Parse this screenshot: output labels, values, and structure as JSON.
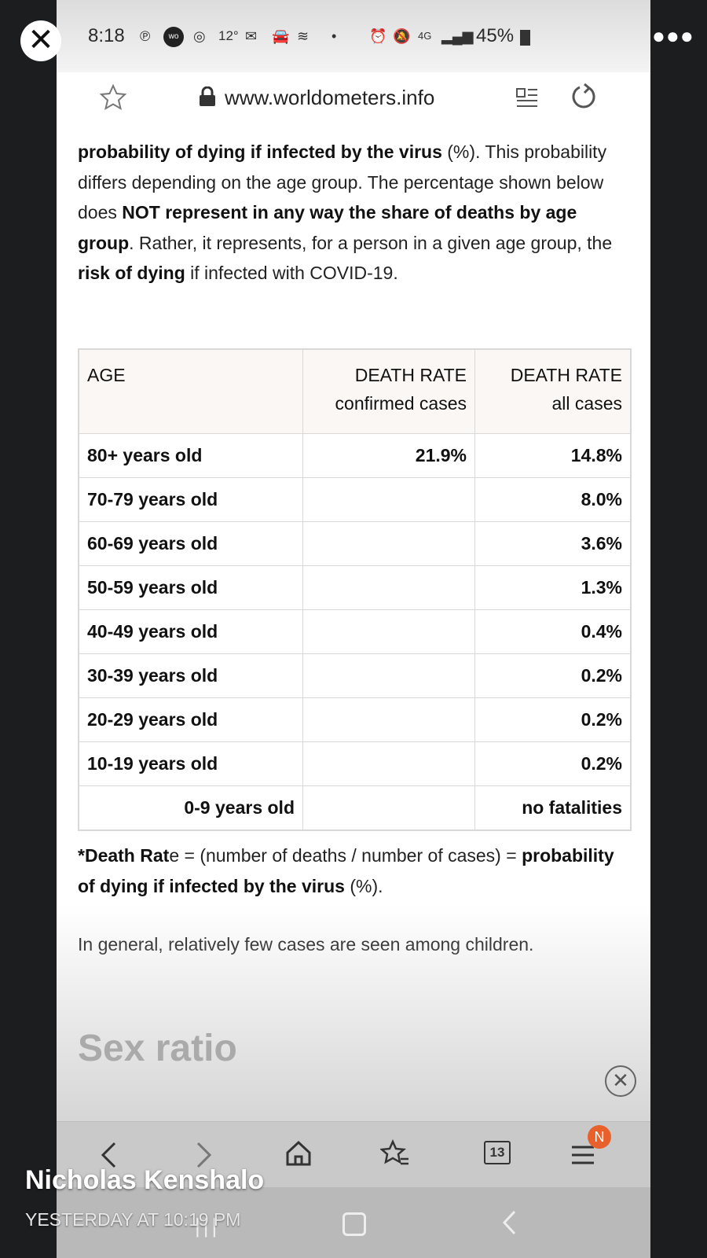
{
  "status": {
    "time": "8:18",
    "temperature": "12°",
    "battery": "45%",
    "network": "4G"
  },
  "browser": {
    "url": "www.worldometers.info",
    "tab_count": "13",
    "notification_badge": "N"
  },
  "article": {
    "intro": {
      "b1": "probability of dying if infected by the virus",
      "t1": " (%). This probability differs depending on the age group. The percentage shown below does ",
      "b2": "NOT represent in any way the share of deaths by age group",
      "t2": ". Rather, it represents, for a person in a given age group, the ",
      "b3": "risk of dying",
      "t3": " if infected with COVID-19."
    },
    "table": {
      "headers": {
        "age": "AGE",
        "col2_line1": "DEATH RATE",
        "col2_line2": "confirmed cases",
        "col3_line1": "DEATH RATE",
        "col3_line2": "all cases"
      },
      "rows": [
        {
          "age": "80+ years old",
          "confirmed": "21.9%",
          "all": "14.8%"
        },
        {
          "age": "70-79 years old",
          "confirmed": "",
          "all": "8.0%"
        },
        {
          "age": "60-69 years old",
          "confirmed": "",
          "all": "3.6%"
        },
        {
          "age": "50-59 years old",
          "confirmed": "",
          "all": "1.3%"
        },
        {
          "age": "40-49 years old",
          "confirmed": "",
          "all": "0.4%"
        },
        {
          "age": "30-39 years old",
          "confirmed": "",
          "all": "0.2%"
        },
        {
          "age": "20-29 years old",
          "confirmed": "",
          "all": "0.2%"
        },
        {
          "age": "10-19 years old",
          "confirmed": "",
          "all": "0.2%"
        },
        {
          "age": "0-9 years old",
          "confirmed": "",
          "all": "no fatalities"
        }
      ]
    },
    "footnote": {
      "star": "*",
      "b1": "Death Rat",
      "t1": "e = (number of deaths / number of cases) = ",
      "b2": "probability of dying if infected by the virus",
      "t2": " (%)."
    },
    "general": "In general, relatively few cases are seen among children.",
    "next_heading": "Sex ratio"
  },
  "story": {
    "poster": "Nicholas Kenshalo",
    "timestamp": "YESTERDAY AT 10:19 PM"
  },
  "icons": {
    "close_story": "close-icon",
    "more": "more-dots-icon",
    "bookmark": "star-outline-icon",
    "lock": "lock-icon",
    "reader": "reader-mode-icon",
    "reload": "reload-icon",
    "back": "back-icon",
    "forward": "forward-icon",
    "home": "home-icon",
    "bookmarks": "bookmarks-icon",
    "tabs": "tabs-icon",
    "menu": "menu-icon"
  },
  "colors": {
    "badge": "#e8612c",
    "story_bg": "#1c1d1f"
  }
}
